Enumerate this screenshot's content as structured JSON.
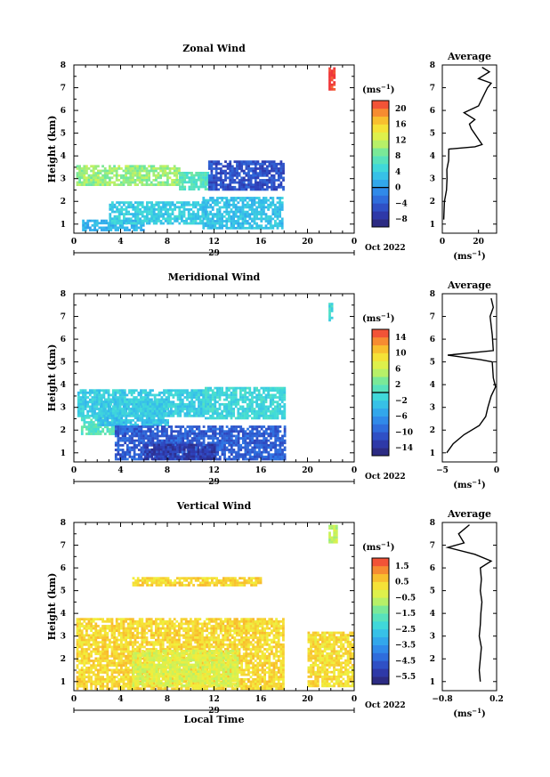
{
  "chart_data": [
    {
      "type": "heatmap",
      "title": "Zonal Wind",
      "ylabel": "Height (km)",
      "xlabel": "",
      "xlim": [
        0,
        24
      ],
      "ylim": [
        0.6,
        8
      ],
      "xticks": [
        "0",
        "4",
        "8",
        "12",
        "16",
        "20",
        "0"
      ],
      "yticks": [
        "1",
        "2",
        "3",
        "4",
        "5",
        "6",
        "7",
        "8"
      ],
      "date_label": "29",
      "month_label": "Oct 2022",
      "colorbar": {
        "unit": "(ms",
        "unit_exp": "−1",
        "unit_close": ")",
        "min": -10,
        "max": 22,
        "ticks": [
          "20",
          "16",
          "12",
          "8",
          "4",
          "0",
          "−4",
          "−8"
        ],
        "tick_values": [
          20,
          16,
          12,
          8,
          4,
          0,
          -4,
          -8
        ],
        "contour_at": 0
      },
      "field_summary": [
        {
          "x": [
            0.7,
            6.0
          ],
          "y": [
            0.7,
            1.2
          ],
          "value": 2
        },
        {
          "x": [
            3.0,
            11.5
          ],
          "y": [
            1.0,
            2.0
          ],
          "value": 4
        },
        {
          "x": [
            11.0,
            17.8
          ],
          "y": [
            0.8,
            2.2
          ],
          "value": 3
        },
        {
          "x": [
            0.2,
            9.0
          ],
          "y": [
            2.7,
            3.6
          ],
          "value": 10
        },
        {
          "x": [
            9.0,
            11.5
          ],
          "y": [
            2.5,
            3.3
          ],
          "value": 7
        },
        {
          "x": [
            11.5,
            18.0
          ],
          "y": [
            2.5,
            3.8
          ],
          "value": -5
        },
        {
          "x": [
            21.8,
            22.3
          ],
          "y": [
            6.9,
            7.9
          ],
          "value": 22
        }
      ],
      "average": {
        "title": "Average",
        "xlim": [
          0,
          30
        ],
        "xticks": [
          "0",
          "20"
        ],
        "xtick_values": [
          0,
          20
        ],
        "unit": "(ms",
        "unit_exp": "−1",
        "unit_close": ")",
        "profile": [
          [
            1.2,
            0.8
          ],
          [
            2.0,
            1.2
          ],
          [
            2.5,
            2.3
          ],
          [
            3.0,
            2.6
          ],
          [
            3.4,
            2.5
          ],
          [
            3.8,
            3.5
          ],
          [
            4.3,
            3.6
          ],
          [
            4.4,
            18
          ],
          [
            4.5,
            22
          ],
          [
            5.2,
            16
          ],
          [
            5.4,
            15
          ],
          [
            5.6,
            18
          ],
          [
            5.9,
            12
          ],
          [
            6.2,
            20
          ],
          [
            7.0,
            25
          ],
          [
            7.2,
            27
          ],
          [
            7.4,
            20
          ],
          [
            7.7,
            26
          ],
          [
            7.9,
            22
          ]
        ]
      }
    },
    {
      "type": "heatmap",
      "title": "Meridional Wind",
      "ylabel": "Height (km)",
      "xlabel": "",
      "xlim": [
        0,
        24
      ],
      "ylim": [
        0.6,
        8
      ],
      "xticks": [
        "0",
        "4",
        "8",
        "12",
        "16",
        "20",
        "0"
      ],
      "yticks": [
        "1",
        "2",
        "3",
        "4",
        "5",
        "6",
        "7",
        "8"
      ],
      "date_label": "29",
      "month_label": "Oct 2022",
      "colorbar": {
        "unit": "(ms",
        "unit_exp": "−1",
        "unit_close": ")",
        "min": -16,
        "max": 16,
        "ticks": [
          "14",
          "10",
          "6",
          "2",
          "−2",
          "−6",
          "−10",
          "−14"
        ],
        "tick_values": [
          14,
          10,
          6,
          2,
          -2,
          -6,
          -10,
          -14
        ],
        "contour_at": 0
      },
      "field_summary": [
        {
          "x": [
            0.6,
            4.0
          ],
          "y": [
            1.8,
            2.6
          ],
          "value": 1
        },
        {
          "x": [
            2.0,
            8.0
          ],
          "y": [
            2.2,
            3.4
          ],
          "value": -3
        },
        {
          "x": [
            3.5,
            18.0
          ],
          "y": [
            0.7,
            2.2
          ],
          "value": -10
        },
        {
          "x": [
            6.0,
            12.0
          ],
          "y": [
            0.7,
            1.4
          ],
          "value": -13
        },
        {
          "x": [
            0.3,
            11.0
          ],
          "y": [
            2.6,
            3.8
          ],
          "value": -2
        },
        {
          "x": [
            11.0,
            18.0
          ],
          "y": [
            2.5,
            3.9
          ],
          "value": -1
        },
        {
          "x": [
            21.8,
            22.1
          ],
          "y": [
            6.8,
            7.6
          ],
          "value": -1
        }
      ],
      "average": {
        "title": "Average",
        "xlim": [
          -5,
          0
        ],
        "xticks": [
          "−5",
          "0"
        ],
        "xtick_values": [
          -5,
          0
        ],
        "unit": "(ms",
        "unit_exp": "−1",
        "unit_close": ")",
        "profile": [
          [
            1.0,
            -4.6
          ],
          [
            1.4,
            -4.0
          ],
          [
            1.8,
            -3.0
          ],
          [
            2.2,
            -1.6
          ],
          [
            2.6,
            -1.0
          ],
          [
            3.0,
            -0.8
          ],
          [
            3.5,
            -0.5
          ],
          [
            3.9,
            -0.1
          ],
          [
            4.3,
            -0.3
          ],
          [
            5.0,
            -0.4
          ],
          [
            5.1,
            -1.5
          ],
          [
            5.3,
            -4.5
          ],
          [
            5.5,
            -0.3
          ],
          [
            6.2,
            -0.4
          ],
          [
            7.0,
            -0.6
          ],
          [
            7.4,
            -0.3
          ],
          [
            7.8,
            -0.5
          ]
        ]
      }
    },
    {
      "type": "heatmap",
      "title": "Vertical Wind",
      "ylabel": "Height (km)",
      "xlabel": "Local Time",
      "xlim": [
        0,
        24
      ],
      "ylim": [
        0.6,
        8
      ],
      "xticks": [
        "0",
        "4",
        "8",
        "12",
        "16",
        "20",
        "0"
      ],
      "yticks": [
        "1",
        "2",
        "3",
        "4",
        "5",
        "6",
        "7",
        "8"
      ],
      "date_label": "29",
      "month_label": "Oct 2022",
      "colorbar": {
        "unit": "(ms",
        "unit_exp": "−1",
        "unit_close": ")",
        "min": -6.0,
        "max": 2.0,
        "ticks": [
          "1.5",
          "0.5",
          "−0.5",
          "−1.5",
          "−2.5",
          "−3.5",
          "−4.5",
          "−5.5"
        ],
        "tick_values": [
          1.5,
          0.5,
          -0.5,
          -1.5,
          -2.5,
          -3.5,
          -4.5,
          -5.5
        ],
        "contour_at": null
      },
      "field_summary": [
        {
          "x": [
            0.2,
            18.0
          ],
          "y": [
            0.7,
            3.8
          ],
          "value": 0.4
        },
        {
          "x": [
            5.0,
            14.0
          ],
          "y": [
            0.8,
            2.4
          ],
          "value": -0.3
        },
        {
          "x": [
            20.0,
            23.8
          ],
          "y": [
            0.8,
            3.2
          ],
          "value": 0.3
        },
        {
          "x": [
            21.8,
            22.4
          ],
          "y": [
            7.1,
            7.9
          ],
          "value": -0.6
        },
        {
          "x": [
            5.0,
            16.0
          ],
          "y": [
            5.2,
            5.6
          ],
          "value": 0.4
        }
      ],
      "average": {
        "title": "Average",
        "xlim": [
          -0.8,
          0.2
        ],
        "xticks": [
          "−0.8",
          "0.2"
        ],
        "xtick_values": [
          -0.8,
          0.2
        ],
        "unit": "(ms",
        "unit_exp": "−1",
        "unit_close": ")",
        "profile": [
          [
            1.0,
            -0.1
          ],
          [
            1.5,
            -0.12
          ],
          [
            2.0,
            -0.1
          ],
          [
            2.5,
            -0.08
          ],
          [
            3.0,
            -0.12
          ],
          [
            3.5,
            -0.1
          ],
          [
            4.0,
            -0.09
          ],
          [
            4.5,
            -0.07
          ],
          [
            5.0,
            -0.1
          ],
          [
            5.5,
            -0.08
          ],
          [
            6.0,
            -0.1
          ],
          [
            6.3,
            0.1
          ],
          [
            6.6,
            -0.2
          ],
          [
            6.9,
            -0.7
          ],
          [
            7.1,
            -0.4
          ],
          [
            7.5,
            -0.5
          ],
          [
            7.9,
            -0.3
          ]
        ]
      }
    }
  ]
}
